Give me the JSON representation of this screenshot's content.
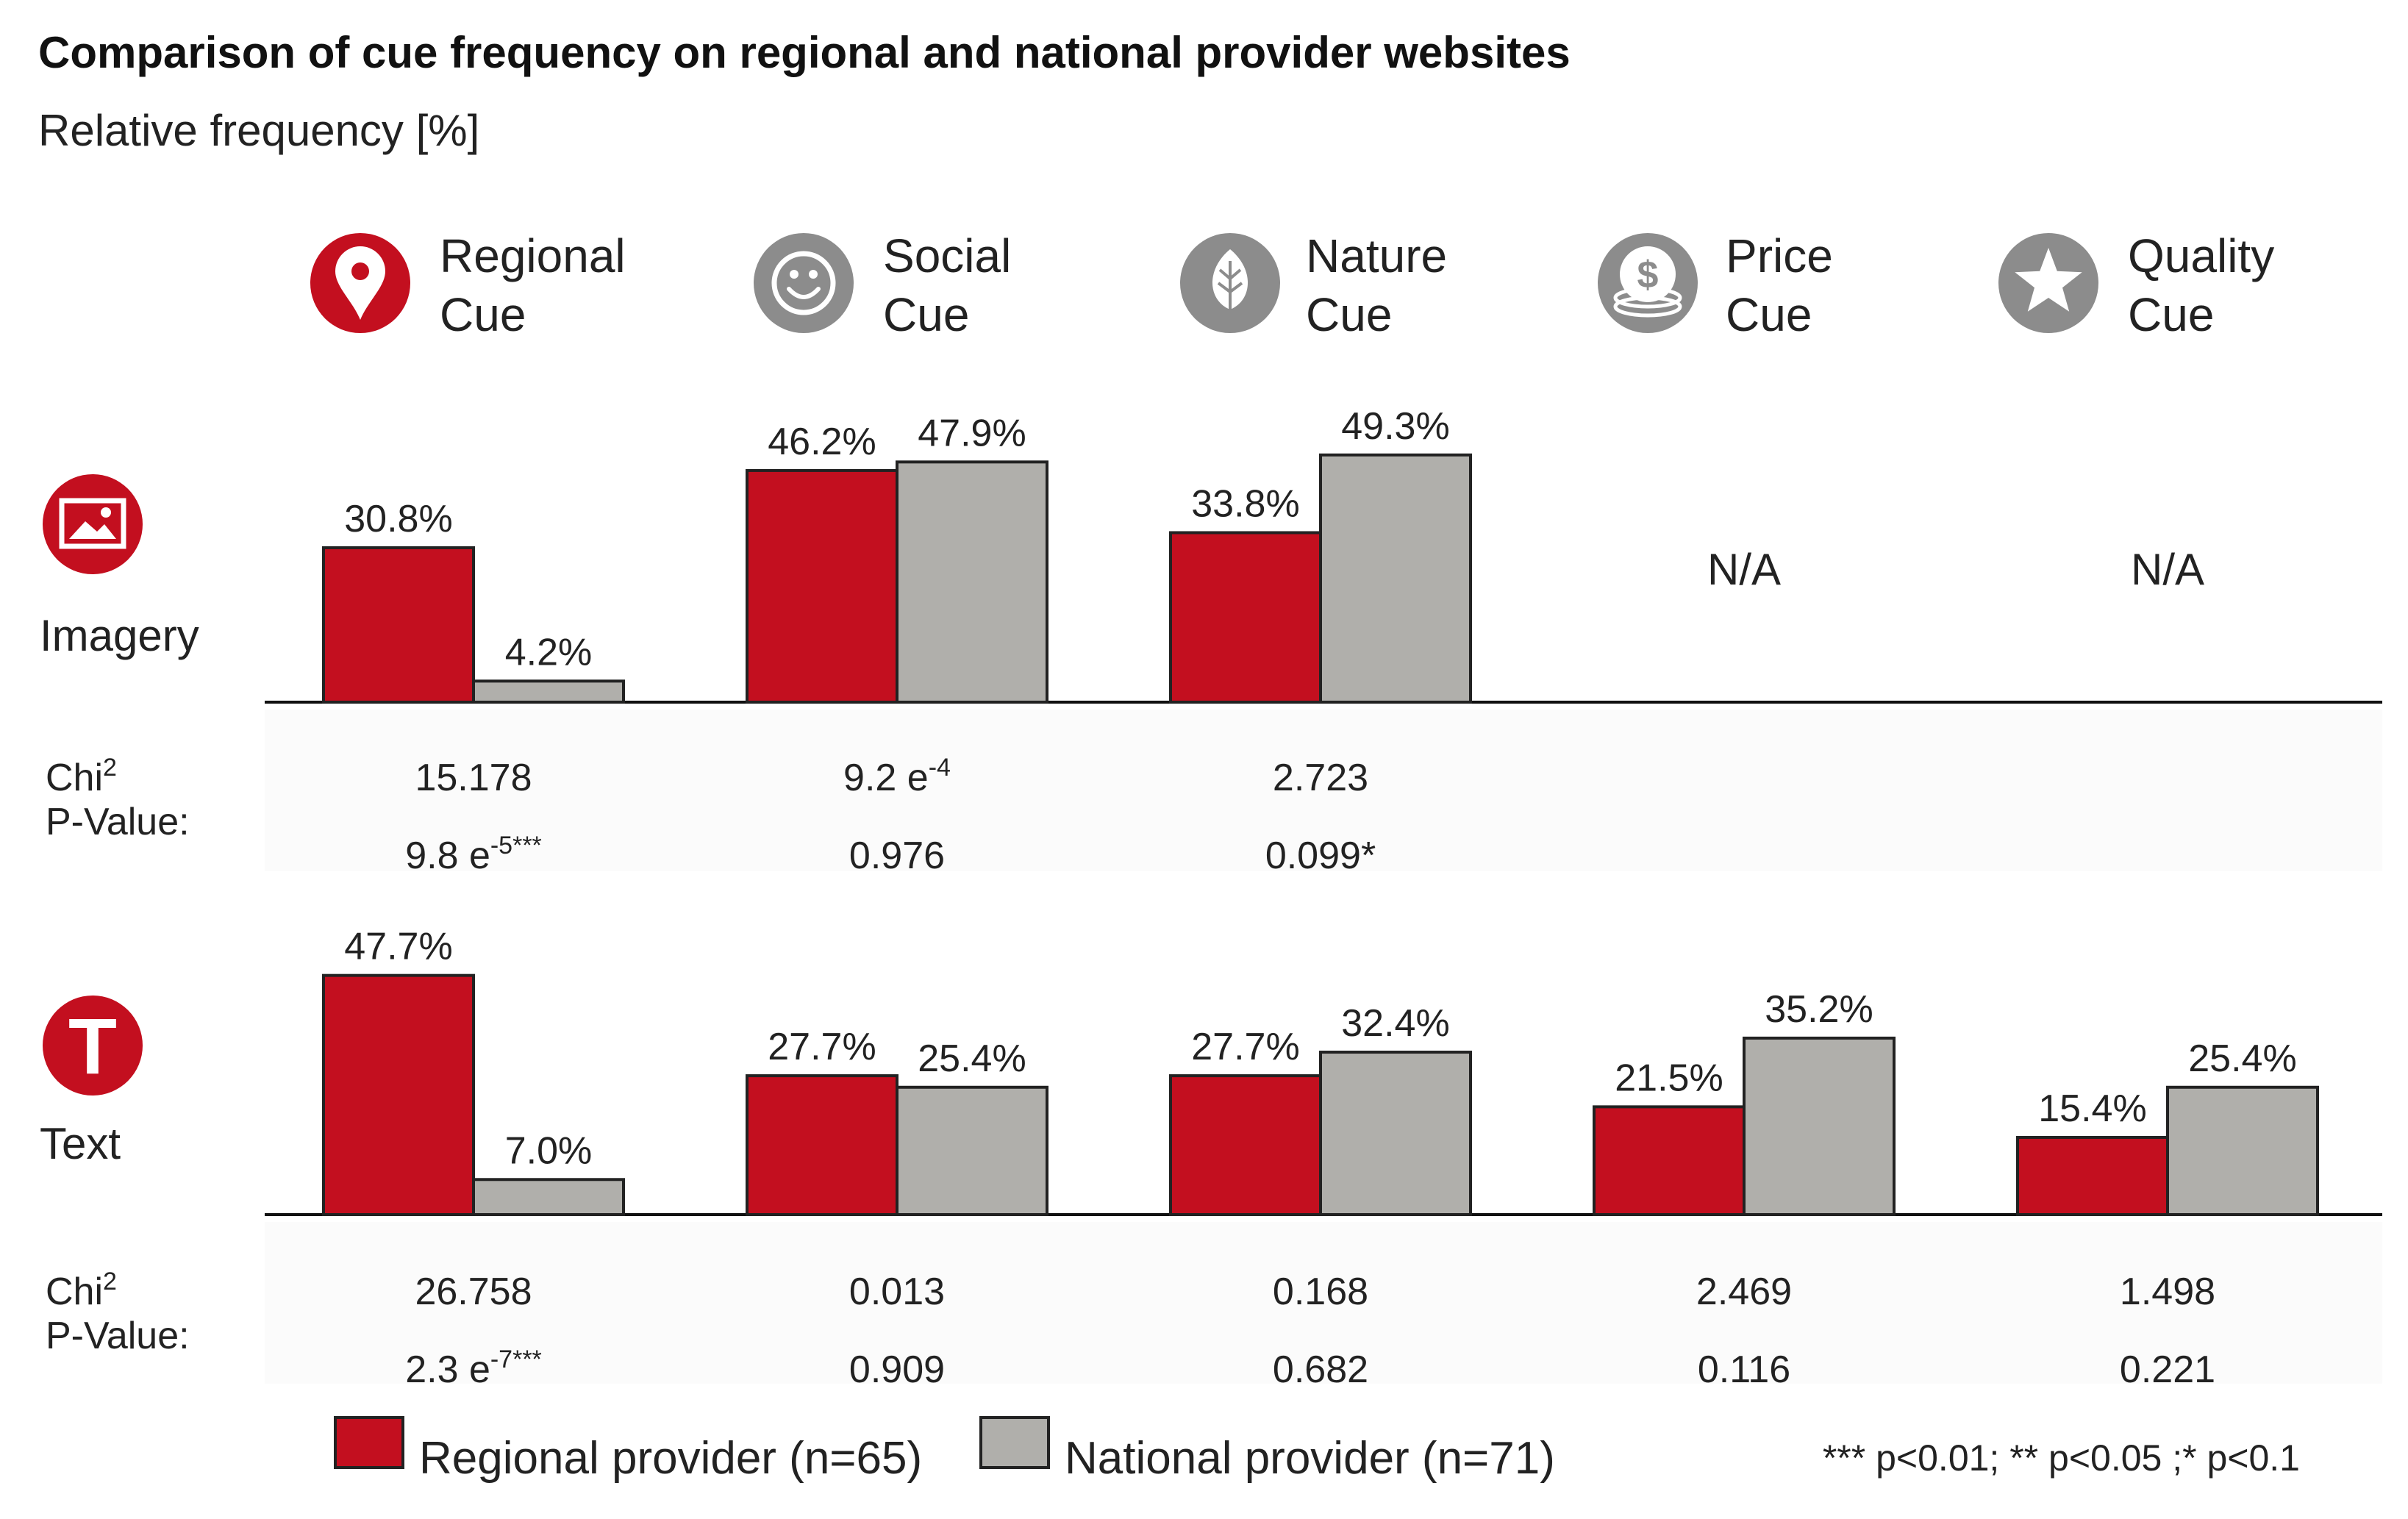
{
  "chart_data": {
    "type": "bar",
    "title": "Comparison of cue frequency on regional and national provider websites",
    "subtitle": "Relative frequency [%]",
    "categories": [
      {
        "line1": "Regional",
        "line2": "Cue",
        "icon": "map-pin-icon"
      },
      {
        "line1": "Social",
        "line2": "Cue",
        "icon": "smiley-icon"
      },
      {
        "line1": "Nature",
        "line2": "Cue",
        "icon": "leaf-icon"
      },
      {
        "line1": "Price",
        "line2": "Cue",
        "icon": "coins-icon"
      },
      {
        "line1": "Quality",
        "line2": "Cue",
        "icon": "star-icon"
      }
    ],
    "series": [
      {
        "name": "Regional provider (n=65)",
        "color": "#c30f1f"
      },
      {
        "name": "National provider (n=71)",
        "color": "#b0afab"
      }
    ],
    "chi_label": "Chi",
    "chi_sup": "2",
    "p_label": "P-Value:",
    "panels": [
      {
        "name": "Imagery",
        "icon": "image-icon",
        "values": [
          [
            30.8,
            4.2
          ],
          [
            46.2,
            47.9
          ],
          [
            33.8,
            49.3
          ],
          null,
          null
        ],
        "labels": [
          [
            "30.8%",
            "4.2%"
          ],
          [
            "46.2%",
            "47.9%"
          ],
          [
            "33.8%",
            "49.3%"
          ],
          null,
          null
        ],
        "na_text": "N/A",
        "chi2": [
          {
            "base": "15.178",
            "sup": ""
          },
          {
            "base": "9.2 e",
            "sup": "-4"
          },
          {
            "base": "2.723",
            "sup": ""
          },
          null,
          null
        ],
        "p": [
          {
            "base": "9.8 e",
            "sup": "-5***"
          },
          {
            "base": "0.976",
            "sup": ""
          },
          {
            "base": "0.099*",
            "sup": ""
          },
          null,
          null
        ]
      },
      {
        "name": "Text",
        "icon": "text-t-icon",
        "values": [
          [
            47.7,
            7.0
          ],
          [
            27.7,
            25.4
          ],
          [
            27.7,
            32.4
          ],
          [
            21.5,
            35.2
          ],
          [
            15.4,
            25.4
          ]
        ],
        "labels": [
          [
            "47.7%",
            "7.0%"
          ],
          [
            "27.7%",
            "25.4%"
          ],
          [
            "27.7%",
            "32.4%"
          ],
          [
            "21.5%",
            "35.2%"
          ],
          [
            "15.4%",
            "25.4%"
          ]
        ],
        "na_text": "N/A",
        "chi2": [
          {
            "base": "26.758",
            "sup": ""
          },
          {
            "base": "0.013",
            "sup": ""
          },
          {
            "base": "0.168",
            "sup": ""
          },
          {
            "base": "2.469",
            "sup": ""
          },
          {
            "base": "1.498",
            "sup": ""
          }
        ],
        "p": [
          {
            "base": "2.3 e",
            "sup": "-7***"
          },
          {
            "base": "0.909",
            "sup": ""
          },
          {
            "base": "0.682",
            "sup": ""
          },
          {
            "base": "0.116",
            "sup": ""
          },
          {
            "base": "0.221",
            "sup": ""
          }
        ]
      }
    ],
    "significance_note": "*** p<0.01; ** p<0.05 ;* p<0.1",
    "colors": {
      "regional": "#c30f1f",
      "national": "#b0afab",
      "icon_grey": "#8c8c8c"
    }
  }
}
